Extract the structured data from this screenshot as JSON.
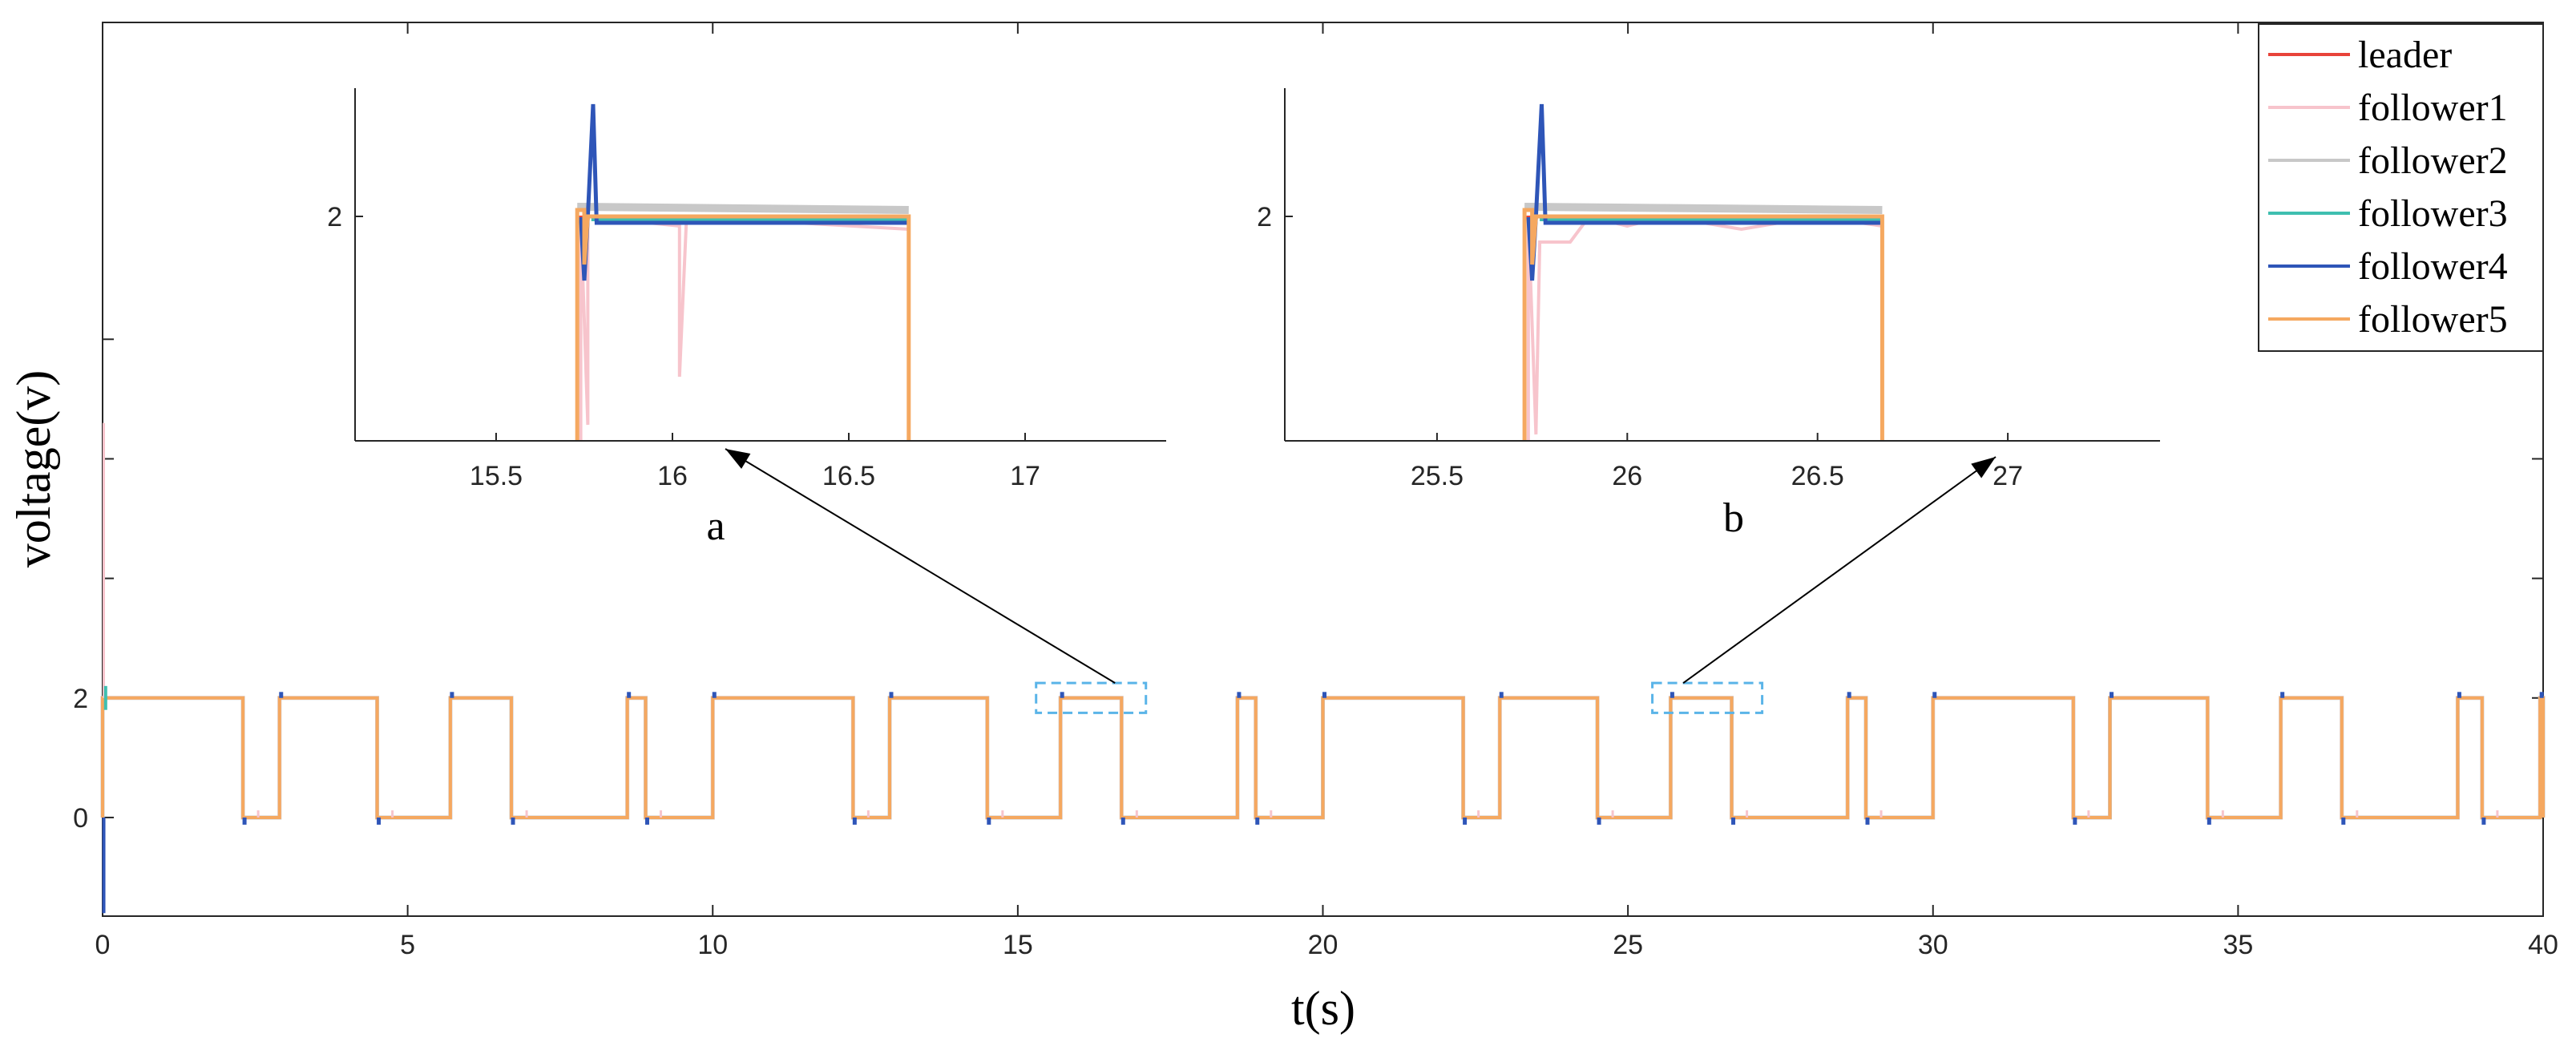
{
  "chart_data": {
    "type": "line",
    "xlabel": "t(s)",
    "ylabel": "voltage(v)",
    "xlim": [
      0,
      40
    ],
    "ylim": [
      -1.65,
      13.3
    ],
    "xticks": [
      0,
      5,
      10,
      15,
      20,
      25,
      30,
      35,
      40
    ],
    "xtick_labels": [
      "0",
      "5",
      "10",
      "15",
      "20",
      "25",
      "30",
      "35",
      "40"
    ],
    "yticks": [
      0,
      2
    ],
    "ytick_labels": [
      "0",
      "2"
    ],
    "legend_position": "top-right",
    "colors": {
      "leader": "#E8433A",
      "follower1": "#F7C4CC",
      "follower2": "#C8C8C8",
      "follower3": "#3FBFB0",
      "follower4": "#2E55B8",
      "follower5": "#F5A860",
      "zoom_box": "#5AB4E8"
    },
    "series": [
      {
        "name": "leader"
      },
      {
        "name": "follower1"
      },
      {
        "name": "follower2"
      },
      {
        "name": "follower3"
      },
      {
        "name": "follower4"
      },
      {
        "name": "follower5"
      }
    ],
    "square_wave": {
      "high": 2,
      "low": 0,
      "high_intervals": [
        [
          0,
          2.3
        ],
        [
          2.9,
          4.5
        ],
        [
          5.7,
          6.7
        ],
        [
          8.6,
          8.9
        ],
        [
          10.0,
          12.3
        ],
        [
          12.9,
          14.5
        ],
        [
          15.7,
          16.7
        ],
        [
          18.6,
          18.9
        ],
        [
          20.0,
          22.3
        ],
        [
          22.9,
          24.5
        ],
        [
          25.7,
          26.7
        ],
        [
          28.6,
          28.9
        ],
        [
          30.0,
          32.3
        ],
        [
          32.9,
          34.5
        ],
        [
          35.7,
          36.7
        ],
        [
          38.6,
          39.0
        ],
        [
          39.95,
          40
        ]
      ]
    },
    "insets": [
      {
        "label": "a",
        "xlim": [
          15.1,
          17.4
        ],
        "ylim": [
          1.3,
          2.4
        ],
        "xticks": [
          15.5,
          16,
          16.5,
          17
        ],
        "xtick_labels": [
          "15.5",
          "16",
          "16.5",
          "17"
        ],
        "yticks": [
          2
        ],
        "ytick_labels": [
          "2"
        ],
        "high_interval": [
          15.73,
          16.67
        ],
        "zoom_region": {
          "x": [
            15.3,
            17.1
          ],
          "y": [
            1.75,
            2.25
          ]
        }
      },
      {
        "label": "b",
        "xlim": [
          25.1,
          27.4
        ],
        "ylim": [
          1.3,
          2.4
        ],
        "xticks": [
          25.5,
          26,
          26.5,
          27
        ],
        "xtick_labels": [
          "25.5",
          "26",
          "26.5",
          "27"
        ],
        "yticks": [
          2
        ],
        "ytick_labels": [
          "2"
        ],
        "high_interval": [
          25.73,
          26.67
        ],
        "zoom_region": {
          "x": [
            25.4,
            27.2
          ],
          "y": [
            1.75,
            2.25
          ]
        }
      }
    ]
  }
}
